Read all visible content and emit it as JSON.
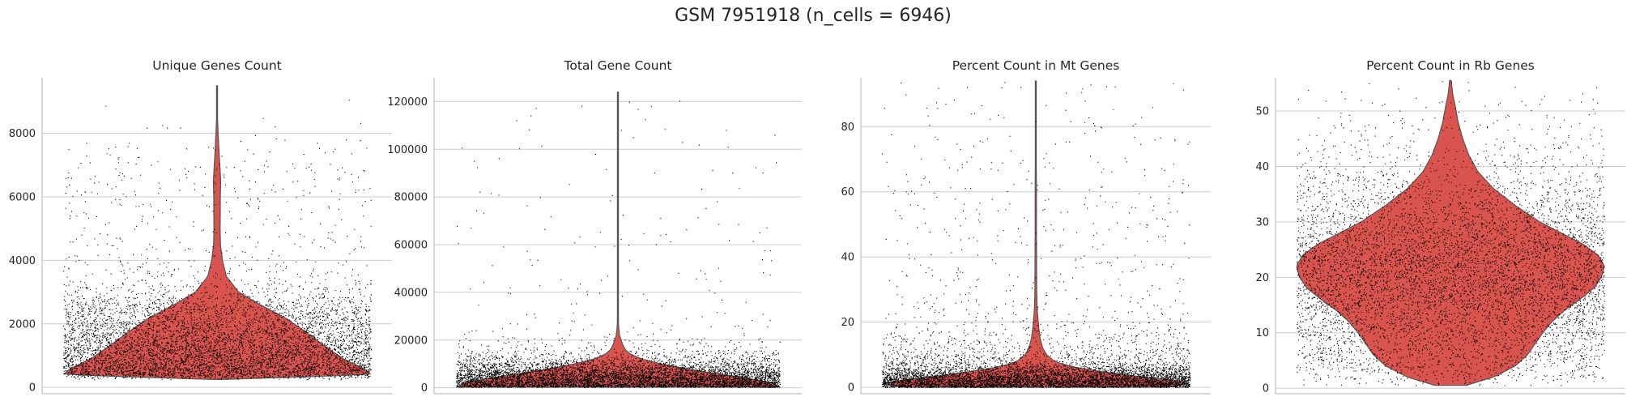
{
  "title": "GSM 7951918 (n_cells = 6946)",
  "colors": {
    "violin_fill": "#d9534f",
    "violin_edge": "#555555",
    "points": "#000000",
    "grid": "#cccccc"
  },
  "chart_data": [
    {
      "type": "violin",
      "title": "Unique Genes Count",
      "ylim": [
        -200,
        9750
      ],
      "yticks": [
        0,
        2000,
        4000,
        6000,
        8000
      ],
      "ytick_labels": [
        "0",
        "2000",
        "4000",
        "6000",
        "8000"
      ],
      "data_range": [
        250,
        9500
      ],
      "n_points": 6946,
      "grid": true,
      "density_profile": [
        [
          250,
          0.03
        ],
        [
          400,
          1.0
        ],
        [
          600,
          0.95
        ],
        [
          900,
          0.82
        ],
        [
          1300,
          0.7
        ],
        [
          1800,
          0.56
        ],
        [
          2200,
          0.44
        ],
        [
          2600,
          0.28
        ],
        [
          3000,
          0.14
        ],
        [
          3500,
          0.06
        ],
        [
          4000,
          0.035
        ],
        [
          4500,
          0.022
        ],
        [
          5000,
          0.02
        ],
        [
          5500,
          0.021
        ],
        [
          6000,
          0.021
        ],
        [
          6500,
          0.024
        ],
        [
          7000,
          0.018
        ],
        [
          7500,
          0.012
        ],
        [
          8000,
          0.007
        ],
        [
          8500,
          0.003
        ],
        [
          9000,
          0.002
        ],
        [
          9500,
          0.001
        ]
      ]
    },
    {
      "type": "violin",
      "title": "Total Gene Count",
      "ylim": [
        -2500,
        130000
      ],
      "yticks": [
        0,
        20000,
        40000,
        60000,
        80000,
        100000,
        120000
      ],
      "ytick_labels": [
        "0",
        "20000",
        "40000",
        "60000",
        "80000",
        "100000",
        "120000"
      ],
      "data_range": [
        300,
        124000
      ],
      "n_points": 6946,
      "grid": true,
      "density_profile": [
        [
          300,
          1.0
        ],
        [
          2000,
          0.95
        ],
        [
          4000,
          0.8
        ],
        [
          6000,
          0.6
        ],
        [
          8000,
          0.42
        ],
        [
          10000,
          0.27
        ],
        [
          12000,
          0.15
        ],
        [
          14000,
          0.08
        ],
        [
          16000,
          0.045
        ],
        [
          18000,
          0.03
        ],
        [
          20000,
          0.02
        ],
        [
          22000,
          0.01
        ],
        [
          26000,
          0.004
        ],
        [
          30000,
          0.003
        ],
        [
          40000,
          0.002
        ],
        [
          50000,
          0.002
        ],
        [
          60000,
          0.003
        ],
        [
          70000,
          0.001
        ],
        [
          80000,
          0.001
        ],
        [
          90000,
          0.001
        ],
        [
          100000,
          0.0008
        ],
        [
          124000,
          0.0005
        ]
      ]
    },
    {
      "type": "violin",
      "title": "Percent Count in Mt Genes",
      "ylim": [
        -2,
        95
      ],
      "yticks": [
        0,
        20,
        40,
        60,
        80
      ],
      "ytick_labels": [
        "0",
        "20",
        "40",
        "60",
        "80"
      ],
      "data_range": [
        0,
        94
      ],
      "n_points": 6946,
      "grid": true,
      "density_profile": [
        [
          0,
          0.85
        ],
        [
          1,
          1.0
        ],
        [
          2,
          0.9
        ],
        [
          3,
          0.72
        ],
        [
          4,
          0.55
        ],
        [
          5,
          0.4
        ],
        [
          6,
          0.27
        ],
        [
          7,
          0.18
        ],
        [
          8,
          0.12
        ],
        [
          10,
          0.07
        ],
        [
          12,
          0.045
        ],
        [
          15,
          0.028
        ],
        [
          18,
          0.02
        ],
        [
          22,
          0.012
        ],
        [
          25,
          0.008
        ],
        [
          30,
          0.006
        ],
        [
          40,
          0.005
        ],
        [
          50,
          0.004
        ],
        [
          60,
          0.004
        ],
        [
          70,
          0.003
        ],
        [
          80,
          0.003
        ],
        [
          94,
          0.002
        ]
      ]
    },
    {
      "type": "violin",
      "title": "Percent Count in Rb Genes",
      "ylim": [
        -1,
        56
      ],
      "yticks": [
        0,
        10,
        20,
        30,
        40,
        50
      ],
      "ytick_labels": [
        "0",
        "10",
        "20",
        "30",
        "40",
        "50"
      ],
      "data_range": [
        0.5,
        55.5
      ],
      "n_points": 6946,
      "grid": true,
      "density_profile": [
        [
          0.5,
          0.1
        ],
        [
          2,
          0.28
        ],
        [
          4,
          0.42
        ],
        [
          6,
          0.5
        ],
        [
          8,
          0.55
        ],
        [
          10,
          0.6
        ],
        [
          12,
          0.66
        ],
        [
          14,
          0.74
        ],
        [
          16,
          0.84
        ],
        [
          18,
          0.93
        ],
        [
          20,
          0.98
        ],
        [
          22,
          1.0
        ],
        [
          24,
          0.96
        ],
        [
          26,
          0.86
        ],
        [
          28,
          0.72
        ],
        [
          30,
          0.58
        ],
        [
          33,
          0.42
        ],
        [
          36,
          0.28
        ],
        [
          39,
          0.18
        ],
        [
          42,
          0.12
        ],
        [
          45,
          0.08
        ],
        [
          48,
          0.05
        ],
        [
          51,
          0.03
        ],
        [
          53,
          0.015
        ],
        [
          55.5,
          0.005
        ]
      ]
    }
  ]
}
